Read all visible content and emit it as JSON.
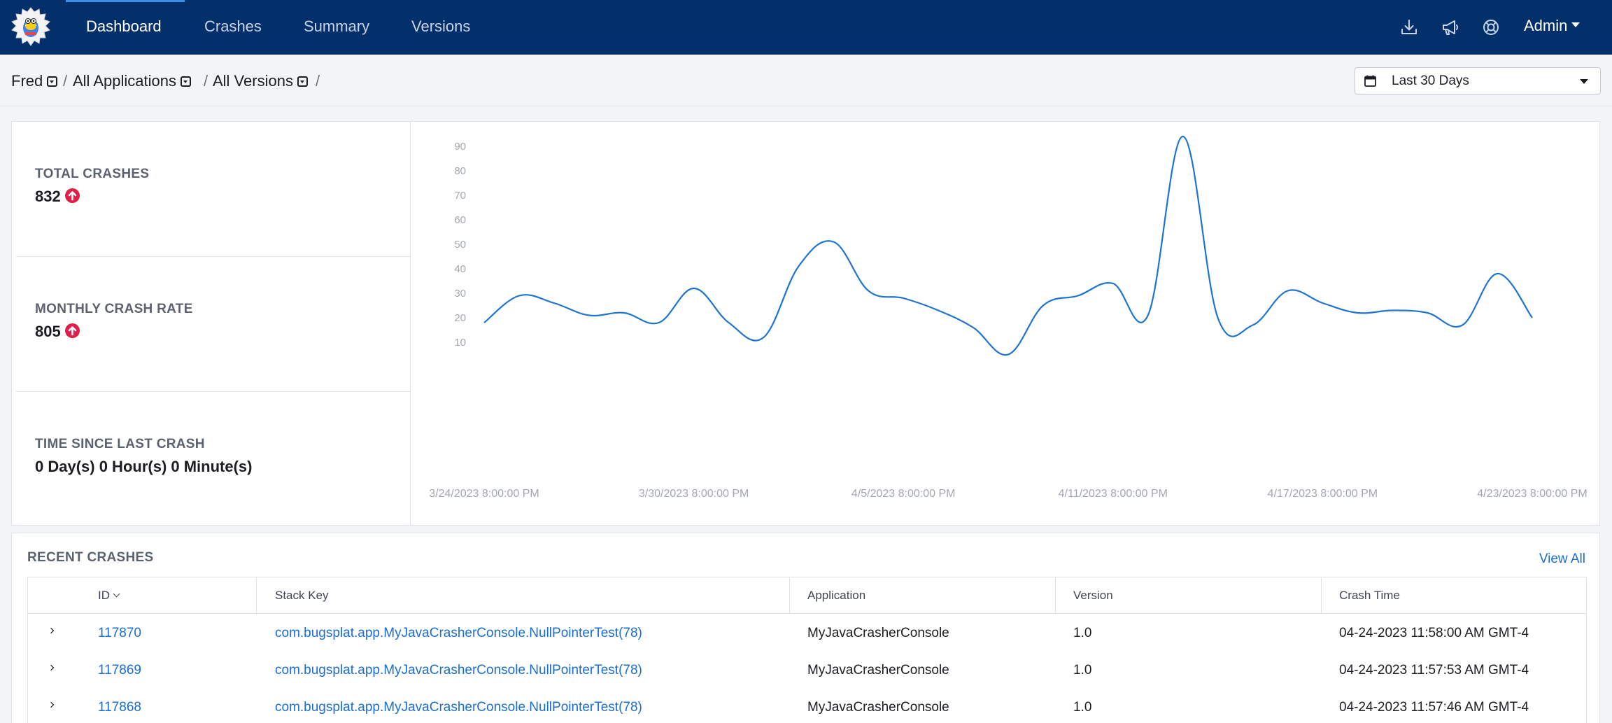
{
  "nav": {
    "items": [
      {
        "label": "Dashboard",
        "active": true
      },
      {
        "label": "Crashes",
        "active": false
      },
      {
        "label": "Summary",
        "active": false
      },
      {
        "label": "Versions",
        "active": false
      }
    ],
    "icons": [
      "download-icon",
      "megaphone-icon",
      "help-lifebuoy-icon"
    ],
    "user_menu": "Admin"
  },
  "breadcrumb": {
    "items": [
      "Fred",
      "All Applications",
      "All Versions"
    ],
    "separator": "/"
  },
  "date_range": {
    "selected": "Last 30 Days"
  },
  "stats": {
    "total_crashes": {
      "label": "TOTAL CRASHES",
      "value": "832",
      "trend": "up"
    },
    "monthly_crash_rate": {
      "label": "MONTHLY CRASH RATE",
      "value": "805",
      "trend": "up"
    },
    "time_since_last": {
      "label": "TIME SINCE LAST CRASH",
      "value": "0 Day(s) 0 Hour(s) 0 Minute(s)"
    }
  },
  "chart_data": {
    "type": "line",
    "title": "",
    "xlabel": "",
    "ylabel": "",
    "ylim": [
      0,
      100
    ],
    "y_ticks": [
      10,
      20,
      30,
      40,
      50,
      60,
      70,
      80,
      90
    ],
    "x_tick_labels": [
      "3/24/2023 8:00:00 PM",
      "3/30/2023 8:00:00 PM",
      "4/5/2023 8:00:00 PM",
      "4/11/2023 8:00:00 PM",
      "4/17/2023 8:00:00 PM",
      "4/23/2023 8:00:00 PM"
    ],
    "x": [
      "3/24/2023",
      "3/25/2023",
      "3/26/2023",
      "3/27/2023",
      "3/28/2023",
      "3/29/2023",
      "3/30/2023",
      "3/31/2023",
      "4/1/2023",
      "4/2/2023",
      "4/3/2023",
      "4/4/2023",
      "4/5/2023",
      "4/6/2023",
      "4/7/2023",
      "4/8/2023",
      "4/9/2023",
      "4/10/2023",
      "4/11/2023",
      "4/12/2023",
      "4/13/2023",
      "4/14/2023",
      "4/15/2023",
      "4/16/2023",
      "4/17/2023",
      "4/18/2023",
      "4/19/2023",
      "4/20/2023",
      "4/21/2023",
      "4/22/2023",
      "4/23/2023"
    ],
    "values": [
      18,
      29,
      26,
      21,
      22,
      18,
      32,
      18,
      12,
      41,
      51,
      31,
      28,
      23,
      16,
      5,
      25,
      29,
      34,
      21,
      94,
      20,
      17,
      31,
      26,
      22,
      23,
      22,
      17,
      38,
      20
    ],
    "line_color": "#1f74d0"
  },
  "recent_crashes": {
    "title": "RECENT CRASHES",
    "view_all": "View All",
    "columns": [
      "ID",
      "Stack Key",
      "Application",
      "Version",
      "Crash Time"
    ],
    "rows": [
      {
        "id": "117870",
        "stack_key": "com.bugsplat.app.MyJavaCrasherConsole.NullPointerTest(78)",
        "application": "MyJavaCrasherConsole",
        "version": "1.0",
        "time": "04-24-2023 11:58:00 AM GMT-4"
      },
      {
        "id": "117869",
        "stack_key": "com.bugsplat.app.MyJavaCrasherConsole.NullPointerTest(78)",
        "application": "MyJavaCrasherConsole",
        "version": "1.0",
        "time": "04-24-2023 11:57:53 AM GMT-4"
      },
      {
        "id": "117868",
        "stack_key": "com.bugsplat.app.MyJavaCrasherConsole.NullPointerTest(78)",
        "application": "MyJavaCrasherConsole",
        "version": "1.0",
        "time": "04-24-2023 11:57:46 AM GMT-4"
      }
    ]
  },
  "colors": {
    "nav_bg": "#03306b",
    "link": "#1a6ed1",
    "trend_up": "#e11d48"
  }
}
